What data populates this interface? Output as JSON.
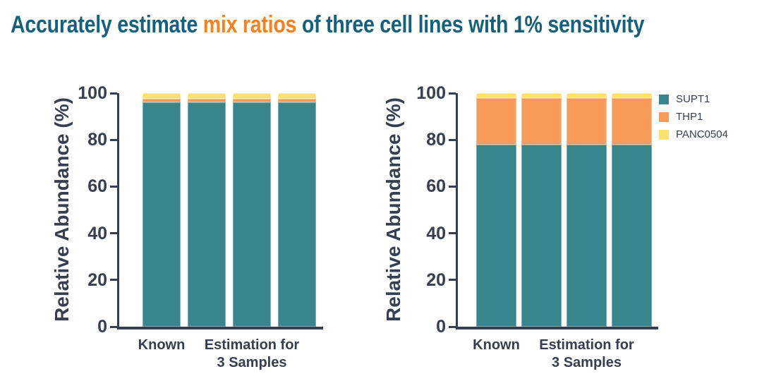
{
  "title": {
    "prefix": "Accurately estimate ",
    "highlight": "mix ratios",
    "suffix": " of three cell lines with 1% sensitivity",
    "color_main": "#15607A",
    "color_highlight": "#F5821E"
  },
  "colors": {
    "SUPT1": "#37868F",
    "THP1": "#F79B5B",
    "PANC0504": "#FBE26A",
    "axis": "#373E50"
  },
  "chart_data": [
    {
      "type": "bar",
      "stacked": true,
      "title": "",
      "ylabel": "Relative Abundance (%)",
      "xlabel": "",
      "ylim": [
        0,
        100
      ],
      "yticks": [
        0,
        20,
        40,
        60,
        80,
        100
      ],
      "grid": false,
      "n_bars": 4,
      "series": [
        {
          "name": "SUPT1",
          "color": "#37868F",
          "values": [
            96,
            96,
            96,
            96
          ]
        },
        {
          "name": "THP1",
          "color": "#F79B5B",
          "values": [
            1.5,
            1.5,
            1.5,
            1.5
          ]
        },
        {
          "name": "PANC0504",
          "color": "#FBE26A",
          "values": [
            2.5,
            2.5,
            2.5,
            2.5
          ]
        }
      ],
      "x_groups": [
        {
          "label": "Known",
          "bars": [
            0
          ]
        },
        {
          "label": "Estimation for\n3 Samples",
          "bars": [
            1,
            2,
            3
          ]
        }
      ],
      "legend_visible": false
    },
    {
      "type": "bar",
      "stacked": true,
      "title": "",
      "ylabel": "Relative Abundance (%)",
      "xlabel": "",
      "ylim": [
        0,
        100
      ],
      "yticks": [
        0,
        20,
        40,
        60,
        80,
        100
      ],
      "grid": false,
      "n_bars": 4,
      "series": [
        {
          "name": "SUPT1",
          "color": "#37868F",
          "values": [
            78,
            78,
            78,
            78
          ]
        },
        {
          "name": "THP1",
          "color": "#F79B5B",
          "values": [
            20,
            20,
            20,
            20
          ]
        },
        {
          "name": "PANC0504",
          "color": "#FBE26A",
          "values": [
            2,
            2,
            2,
            2
          ]
        }
      ],
      "x_groups": [
        {
          "label": "Known",
          "bars": [
            0
          ]
        },
        {
          "label": "Estimation for\n3 Samples",
          "bars": [
            1,
            2,
            3
          ]
        }
      ],
      "legend_visible": true,
      "legend_position": "right",
      "legend_entries": [
        "SUPT1",
        "THP1",
        "PANC0504"
      ]
    }
  ]
}
